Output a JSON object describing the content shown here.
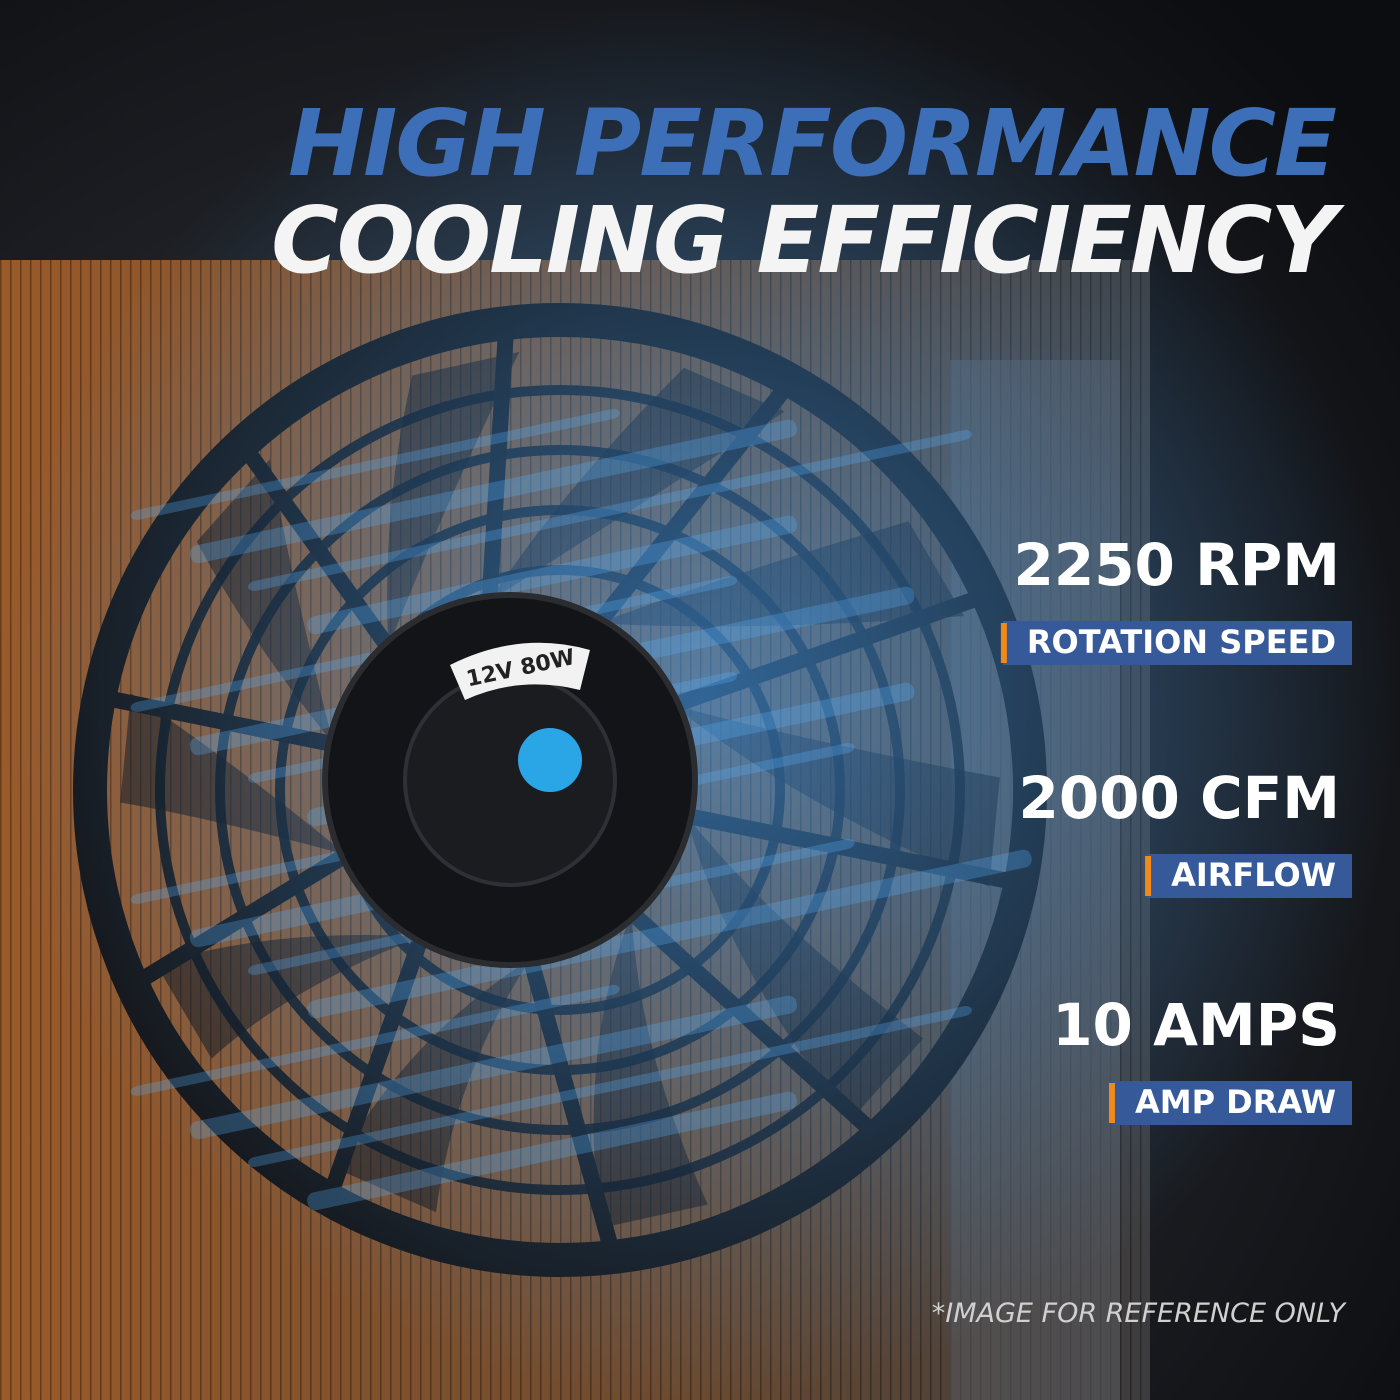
{
  "header": {
    "title_line1": "HIGH PERFORMANCE",
    "title_line2": "COOLING EFFICIENCY"
  },
  "fan_label": "12V 80W",
  "specs": [
    {
      "value": "2250 RPM",
      "label": "ROTATION SPEED"
    },
    {
      "value": "2000 CFM",
      "label": "AIRFLOW"
    },
    {
      "value": "10 AMPS",
      "label": "AMP DRAW"
    }
  ],
  "disclaimer": "*IMAGE FOR REFERENCE ONLY"
}
